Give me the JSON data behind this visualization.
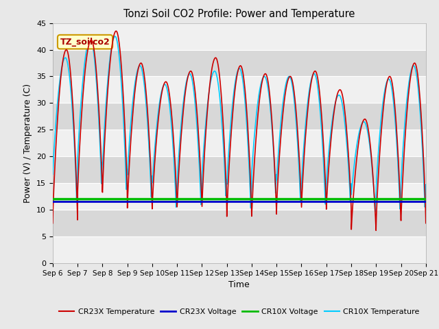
{
  "title": "Tonzi Soil CO2 Profile: Power and Temperature",
  "xlabel": "Time",
  "ylabel": "Power (V) / Temperature (C)",
  "ylim": [
    0,
    45
  ],
  "yticks": [
    0,
    5,
    10,
    15,
    20,
    25,
    30,
    35,
    40,
    45
  ],
  "annotation_text": "TZ_soilco2",
  "annotation_bg": "#ffffcc",
  "annotation_border": "#cc9900",
  "cr23x_temp_color": "#cc0000",
  "cr23x_volt_color": "#0000cc",
  "cr10x_volt_color": "#00bb00",
  "cr10x_temp_color": "#00ccff",
  "figure_bg": "#e8e8e8",
  "plot_bg_light": "#f0f0f0",
  "plot_bg_dark": "#d8d8d8",
  "grid_color": "#ffffff",
  "voltage_cr23x": 11.5,
  "voltage_cr10x": 12.0,
  "x_tick_labels": [
    "Sep 6",
    "Sep 7",
    "Sep 8",
    "Sep 9",
    "Sep 10",
    "Sep 11",
    "Sep 12",
    "Sep 13",
    "Sep 14",
    "Sep 15",
    "Sep 16",
    "Sep 17",
    "Sep 18",
    "Sep 19",
    "Sep 20",
    "Sep 21"
  ],
  "legend_entries": [
    "CR23X Temperature",
    "CR23X Voltage",
    "CR10X Voltage",
    "CR10X Temperature"
  ],
  "legend_colors": [
    "#cc0000",
    "#0000cc",
    "#00bb00",
    "#00ccff"
  ],
  "peak_temps_cr23": [
    40.0,
    41.8,
    43.5,
    37.5,
    34.0,
    36.0,
    38.5,
    37.0,
    35.5,
    35.0,
    36.0,
    32.5,
    27.0,
    35.0,
    37.5
  ],
  "trough_temps": [
    7.5,
    12.5,
    12.5,
    10.0,
    10.0,
    10.0,
    10.0,
    8.5,
    8.5,
    10.0,
    10.0,
    10.0,
    5.5,
    7.0,
    7.5
  ],
  "peak_temps_cr10": [
    38.5,
    42.0,
    42.5,
    37.0,
    33.5,
    35.5,
    36.0,
    36.5,
    35.0,
    35.0,
    35.5,
    31.5,
    26.5,
    34.5,
    37.0
  ],
  "trough_temps_cr10": [
    12.0,
    14.5,
    13.0,
    12.0,
    10.5,
    10.5,
    12.0,
    10.0,
    13.0,
    11.0,
    10.5,
    11.5,
    9.5,
    9.5,
    10.0
  ]
}
